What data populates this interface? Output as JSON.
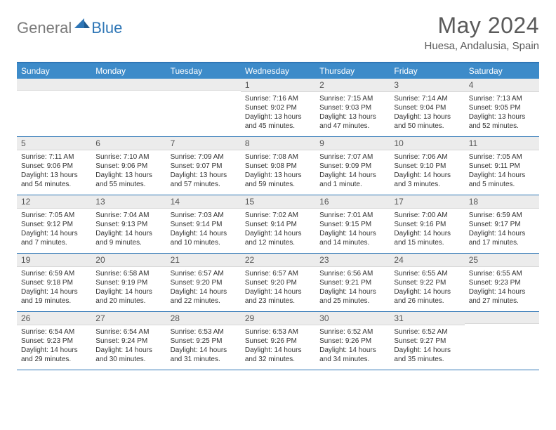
{
  "logo": {
    "text1": "General",
    "text2": "Blue"
  },
  "title": "May 2024",
  "location": "Huesa, Andalusia, Spain",
  "colors": {
    "header_bg": "#3d8bc9",
    "border": "#2e76b6",
    "num_bg": "#ececec",
    "text": "#333333",
    "logo_gray": "#7a7a7a",
    "logo_blue": "#2e76b6"
  },
  "dayNames": [
    "Sunday",
    "Monday",
    "Tuesday",
    "Wednesday",
    "Thursday",
    "Friday",
    "Saturday"
  ],
  "weeks": [
    [
      {
        "n": "",
        "sr": "",
        "ss": "",
        "dl": ""
      },
      {
        "n": "",
        "sr": "",
        "ss": "",
        "dl": ""
      },
      {
        "n": "",
        "sr": "",
        "ss": "",
        "dl": ""
      },
      {
        "n": "1",
        "sr": "7:16 AM",
        "ss": "9:02 PM",
        "dl": "13 hours and 45 minutes."
      },
      {
        "n": "2",
        "sr": "7:15 AM",
        "ss": "9:03 PM",
        "dl": "13 hours and 47 minutes."
      },
      {
        "n": "3",
        "sr": "7:14 AM",
        "ss": "9:04 PM",
        "dl": "13 hours and 50 minutes."
      },
      {
        "n": "4",
        "sr": "7:13 AM",
        "ss": "9:05 PM",
        "dl": "13 hours and 52 minutes."
      }
    ],
    [
      {
        "n": "5",
        "sr": "7:11 AM",
        "ss": "9:06 PM",
        "dl": "13 hours and 54 minutes."
      },
      {
        "n": "6",
        "sr": "7:10 AM",
        "ss": "9:06 PM",
        "dl": "13 hours and 55 minutes."
      },
      {
        "n": "7",
        "sr": "7:09 AM",
        "ss": "9:07 PM",
        "dl": "13 hours and 57 minutes."
      },
      {
        "n": "8",
        "sr": "7:08 AM",
        "ss": "9:08 PM",
        "dl": "13 hours and 59 minutes."
      },
      {
        "n": "9",
        "sr": "7:07 AM",
        "ss": "9:09 PM",
        "dl": "14 hours and 1 minute."
      },
      {
        "n": "10",
        "sr": "7:06 AM",
        "ss": "9:10 PM",
        "dl": "14 hours and 3 minutes."
      },
      {
        "n": "11",
        "sr": "7:05 AM",
        "ss": "9:11 PM",
        "dl": "14 hours and 5 minutes."
      }
    ],
    [
      {
        "n": "12",
        "sr": "7:05 AM",
        "ss": "9:12 PM",
        "dl": "14 hours and 7 minutes."
      },
      {
        "n": "13",
        "sr": "7:04 AM",
        "ss": "9:13 PM",
        "dl": "14 hours and 9 minutes."
      },
      {
        "n": "14",
        "sr": "7:03 AM",
        "ss": "9:14 PM",
        "dl": "14 hours and 10 minutes."
      },
      {
        "n": "15",
        "sr": "7:02 AM",
        "ss": "9:14 PM",
        "dl": "14 hours and 12 minutes."
      },
      {
        "n": "16",
        "sr": "7:01 AM",
        "ss": "9:15 PM",
        "dl": "14 hours and 14 minutes."
      },
      {
        "n": "17",
        "sr": "7:00 AM",
        "ss": "9:16 PM",
        "dl": "14 hours and 15 minutes."
      },
      {
        "n": "18",
        "sr": "6:59 AM",
        "ss": "9:17 PM",
        "dl": "14 hours and 17 minutes."
      }
    ],
    [
      {
        "n": "19",
        "sr": "6:59 AM",
        "ss": "9:18 PM",
        "dl": "14 hours and 19 minutes."
      },
      {
        "n": "20",
        "sr": "6:58 AM",
        "ss": "9:19 PM",
        "dl": "14 hours and 20 minutes."
      },
      {
        "n": "21",
        "sr": "6:57 AM",
        "ss": "9:20 PM",
        "dl": "14 hours and 22 minutes."
      },
      {
        "n": "22",
        "sr": "6:57 AM",
        "ss": "9:20 PM",
        "dl": "14 hours and 23 minutes."
      },
      {
        "n": "23",
        "sr": "6:56 AM",
        "ss": "9:21 PM",
        "dl": "14 hours and 25 minutes."
      },
      {
        "n": "24",
        "sr": "6:55 AM",
        "ss": "9:22 PM",
        "dl": "14 hours and 26 minutes."
      },
      {
        "n": "25",
        "sr": "6:55 AM",
        "ss": "9:23 PM",
        "dl": "14 hours and 27 minutes."
      }
    ],
    [
      {
        "n": "26",
        "sr": "6:54 AM",
        "ss": "9:23 PM",
        "dl": "14 hours and 29 minutes."
      },
      {
        "n": "27",
        "sr": "6:54 AM",
        "ss": "9:24 PM",
        "dl": "14 hours and 30 minutes."
      },
      {
        "n": "28",
        "sr": "6:53 AM",
        "ss": "9:25 PM",
        "dl": "14 hours and 31 minutes."
      },
      {
        "n": "29",
        "sr": "6:53 AM",
        "ss": "9:26 PM",
        "dl": "14 hours and 32 minutes."
      },
      {
        "n": "30",
        "sr": "6:52 AM",
        "ss": "9:26 PM",
        "dl": "14 hours and 34 minutes."
      },
      {
        "n": "31",
        "sr": "6:52 AM",
        "ss": "9:27 PM",
        "dl": "14 hours and 35 minutes."
      },
      {
        "n": "",
        "sr": "",
        "ss": "",
        "dl": ""
      }
    ]
  ],
  "labels": {
    "sunrise": "Sunrise:",
    "sunset": "Sunset:",
    "daylight": "Daylight:"
  }
}
